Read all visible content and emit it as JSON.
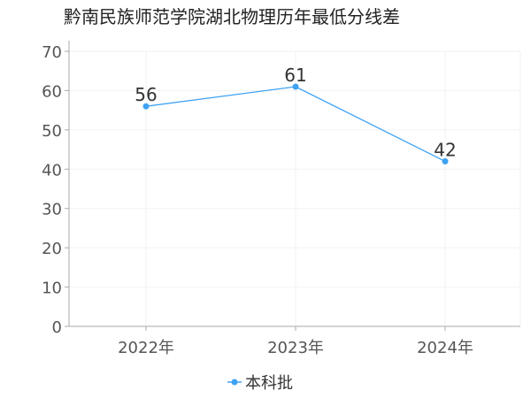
{
  "chart_data": {
    "type": "line",
    "title": "黔南民族师范学院湖北物理历年最低分线差",
    "categories": [
      "2022年",
      "2023年",
      "2024年"
    ],
    "series": [
      {
        "name": "本科批",
        "values": [
          56,
          61,
          42
        ],
        "color": "#3fa2f3"
      }
    ],
    "ylim": [
      0,
      70
    ],
    "yticks": [
      0,
      10,
      20,
      30,
      40,
      50,
      60,
      70
    ],
    "grid": true,
    "legend_position": "bottom-center"
  }
}
